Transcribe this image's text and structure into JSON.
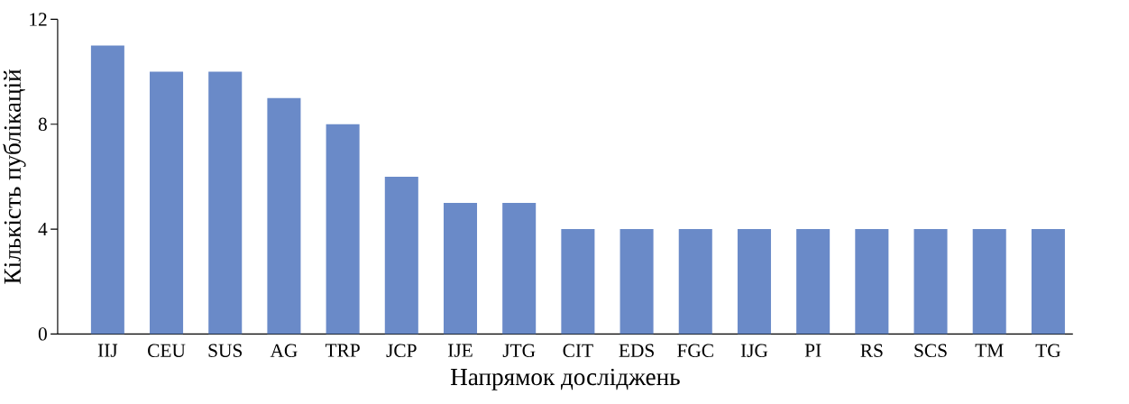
{
  "chart_data": {
    "type": "bar",
    "xlabel": "Напрямок досліджень",
    "ylabel": "Кількість публікацій",
    "categories": [
      "IIJ",
      "CEU",
      "SUS",
      "AG",
      "TRP",
      "JCP",
      "IJE",
      "JTG",
      "CIT",
      "EDS",
      "FGC",
      "IJG",
      "PI",
      "RS",
      "SCS",
      "TM",
      "TG"
    ],
    "values": [
      11,
      10,
      10,
      9,
      8,
      6,
      5,
      5,
      4,
      4,
      4,
      4,
      4,
      4,
      4,
      4,
      4
    ],
    "color": "#6a8ac8",
    "ylim": [
      0,
      12
    ],
    "yticks": [
      0,
      4,
      8,
      12
    ],
    "grid": false
  }
}
